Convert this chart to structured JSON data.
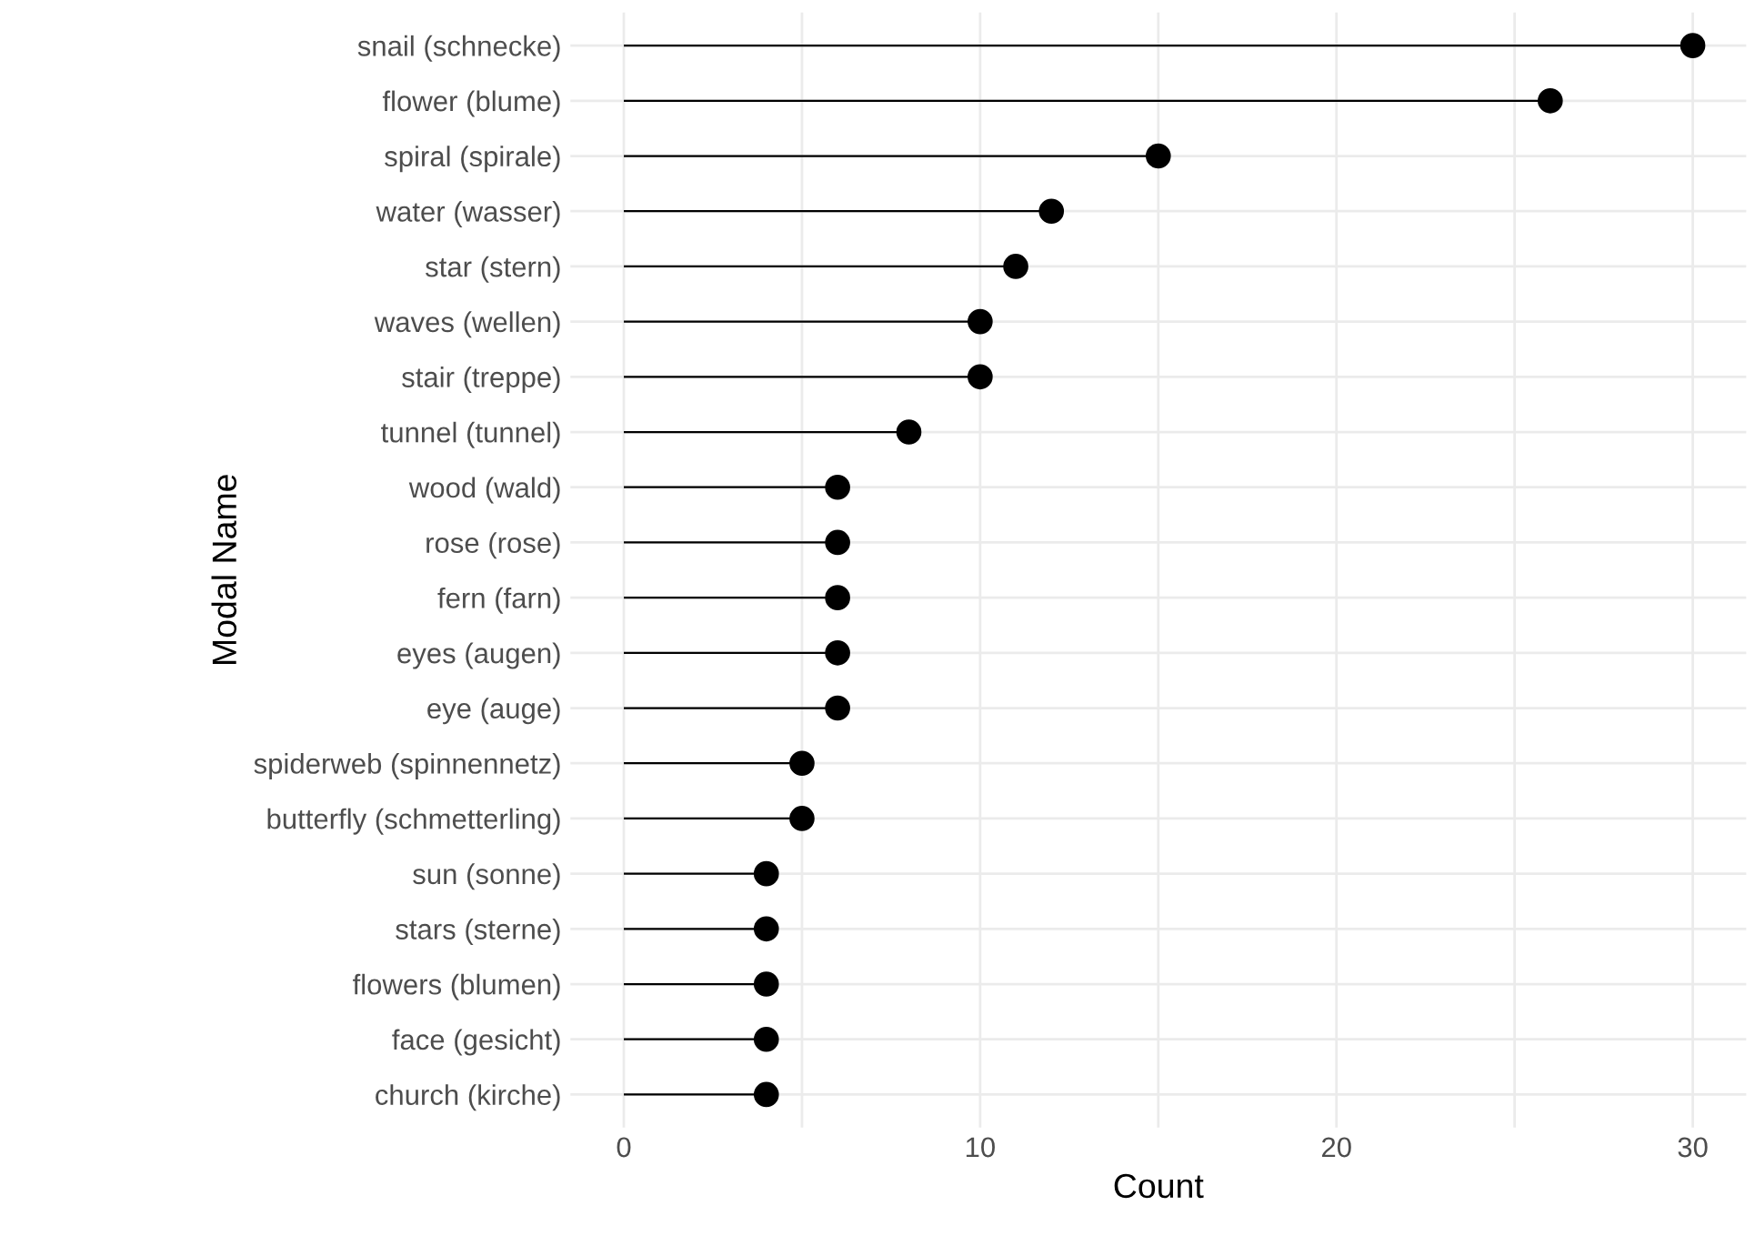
{
  "chart_data": {
    "type": "lollipop",
    "orientation": "horizontal",
    "xlabel": "Count",
    "ylabel": "Modal Name",
    "categories": [
      "snail (schnecke)",
      "flower (blume)",
      "spiral (spirale)",
      "water (wasser)",
      "star (stern)",
      "waves (wellen)",
      "stair (treppe)",
      "tunnel (tunnel)",
      "wood (wald)",
      "rose (rose)",
      "fern (farn)",
      "eyes (augen)",
      "eye (auge)",
      "spiderweb (spinnennetz)",
      "butterfly (schmetterling)",
      "sun (sonne)",
      "stars (sterne)",
      "flowers (blumen)",
      "face (gesicht)",
      "church (kirche)"
    ],
    "values": [
      30,
      26,
      15,
      12,
      11,
      10,
      10,
      8,
      6,
      6,
      6,
      6,
      6,
      5,
      5,
      4,
      4,
      4,
      4,
      4
    ],
    "color": "#000000",
    "marker": "circle",
    "grid": true,
    "legend": false,
    "xlim": [
      -1.5,
      31.5
    ],
    "xticks": [
      0,
      {
        "value": 5,
        "label": null
      },
      10,
      {
        "value": 15,
        "label": null
      },
      20,
      {
        "value": 25,
        "label": null
      },
      30
    ]
  }
}
